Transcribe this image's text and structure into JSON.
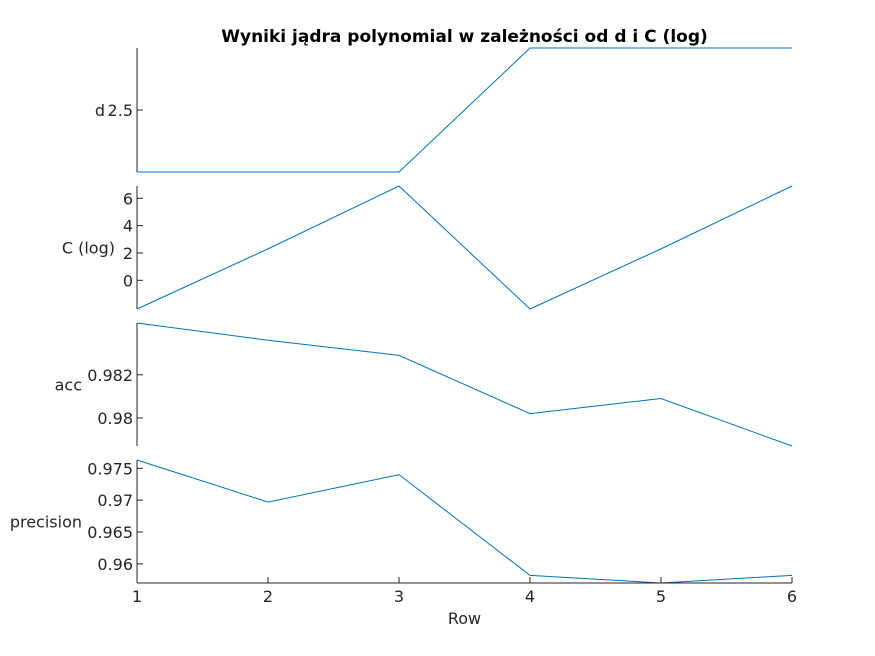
{
  "figure": {
    "title": "Wyniki jądra polynomial w zależności od d i C (log)"
  },
  "chart_data": {
    "type": "line",
    "title": "Wyniki jądra polynomial w zależności od d i C (log)",
    "xlabel": "Row",
    "x": [
      1,
      2,
      3,
      4,
      5,
      6
    ],
    "xlim": [
      1,
      6
    ],
    "xticks": [
      "1",
      "2",
      "3",
      "4",
      "5",
      "6"
    ],
    "line_color": "#0072BD",
    "grid": false,
    "stacked_panels": true,
    "panels": [
      {
        "ylabel": "d",
        "values": [
          2,
          2,
          2,
          3,
          3,
          3
        ],
        "ylim": [
          2,
          3
        ],
        "yticks": [
          2.5
        ],
        "yticklabels": [
          "2.5"
        ]
      },
      {
        "ylabel": "C (log)",
        "values": [
          -2.1,
          2.3,
          6.9,
          -2.1,
          2.3,
          6.9
        ],
        "ylim": [
          -2.1,
          6.9
        ],
        "yticks": [
          0,
          2,
          4,
          6
        ],
        "yticklabels": [
          "0",
          "2",
          "4",
          "6"
        ]
      },
      {
        "ylabel": "acc",
        "values": [
          0.9844,
          0.9836,
          0.9829,
          0.9802,
          0.9809,
          0.9787
        ],
        "ylim": [
          0.9787,
          0.9844
        ],
        "yticks": [
          0.98,
          0.982
        ],
        "yticklabels": [
          "0.98",
          "0.982"
        ]
      },
      {
        "ylabel": "precision",
        "values": [
          0.9763,
          0.9697,
          0.974,
          0.9582,
          0.957,
          0.9582
        ],
        "ylim": [
          0.957,
          0.9763
        ],
        "yticks": [
          0.96,
          0.965,
          0.97,
          0.975
        ],
        "yticklabels": [
          "0.96",
          "0.965",
          "0.97",
          "0.975"
        ]
      }
    ]
  }
}
